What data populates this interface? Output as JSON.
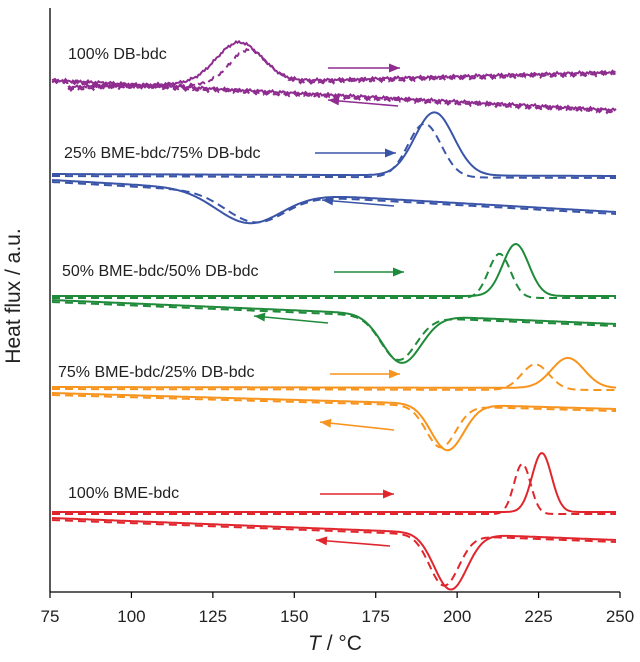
{
  "chart_data": {
    "type": "line",
    "xlabel_italic": "T",
    "xlabel_unit": " / °C",
    "ylabel": "Heat flux / a.u.",
    "xlim": [
      75,
      250
    ],
    "x_ticks": [
      75,
      100,
      125,
      150,
      175,
      200,
      225,
      250
    ],
    "grid": false,
    "line_styles": {
      "solid": "solid",
      "dashed": "dashed"
    },
    "curves": [
      {
        "label": "100% DB-bdc",
        "color": "#8e2c8f",
        "heating_peak_solid": 133,
        "heating_peak_dashed": 136,
        "cooling_peak_solid": null,
        "cooling_peak_dashed": null
      },
      {
        "label": "25% BME-bdc/75% DB-bdc",
        "color": "#3a55a8",
        "heating_peak_solid": 193,
        "heating_peak_dashed": 190,
        "cooling_peak_solid": 136,
        "cooling_peak_dashed": 138
      },
      {
        "label": "50% BME-bdc/50% DB-bdc",
        "color": "#1f8a3a",
        "heating_peak_solid": 218,
        "heating_peak_dashed": 213,
        "cooling_peak_solid": 183,
        "cooling_peak_dashed": 182
      },
      {
        "label": "75% BME-bdc/25% DB-bdc",
        "color": "#f7941d",
        "heating_peak_solid": 234,
        "heating_peak_dashed": 224,
        "cooling_peak_solid": 197,
        "cooling_peak_dashed": 195
      },
      {
        "label": "100% BME-bdc",
        "color": "#e0262c",
        "heating_peak_solid": 226,
        "heating_peak_dashed": 220,
        "cooling_peak_solid": 198,
        "cooling_peak_dashed": 196
      }
    ]
  }
}
